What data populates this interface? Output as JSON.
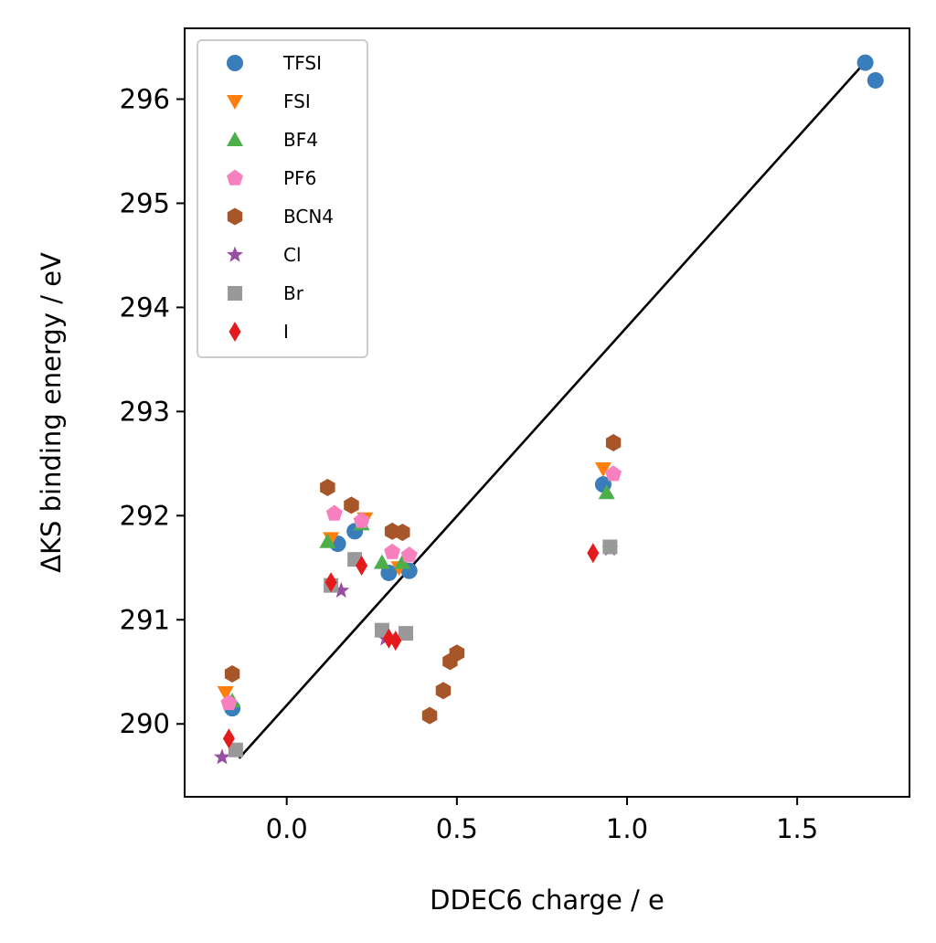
{
  "chart_data": {
    "type": "scatter",
    "xlabel": "DDEC6 charge / e",
    "ylabel": "ΔKS binding energy / eV",
    "xlim": [
      -0.3,
      1.83
    ],
    "ylim": [
      289.3,
      296.68
    ],
    "xticks": [
      0.0,
      0.5,
      1.0,
      1.5
    ],
    "xtick_labels": [
      "0.0",
      "0.5",
      "1.0",
      "1.5"
    ],
    "yticks": [
      290,
      291,
      292,
      293,
      294,
      295,
      296
    ],
    "ytick_labels": [
      "290",
      "291",
      "292",
      "293",
      "294",
      "295",
      "296"
    ],
    "grid": false,
    "legend_position": "upper-left",
    "series": [
      {
        "name": "TFSI",
        "marker": "circle",
        "color": "#3a7dbb",
        "x": [
          -0.16,
          0.15,
          0.2,
          0.3,
          0.36,
          0.93,
          1.7,
          1.73
        ],
        "y": [
          290.15,
          291.73,
          291.85,
          291.45,
          291.47,
          292.3,
          296.35,
          296.18
        ]
      },
      {
        "name": "FSI",
        "marker": "triangle-down",
        "color": "#ff7f0e",
        "x": [
          -0.18,
          0.13,
          0.23,
          0.33,
          0.93
        ],
        "y": [
          290.3,
          291.78,
          291.97,
          291.5,
          292.45
        ]
      },
      {
        "name": "BF4",
        "marker": "triangle-up",
        "color": "#4daf4a",
        "x": [
          -0.16,
          0.12,
          0.22,
          0.28,
          0.34,
          0.94
        ],
        "y": [
          290.22,
          291.75,
          291.92,
          291.55,
          291.55,
          292.22
        ]
      },
      {
        "name": "PF6",
        "marker": "pentagon",
        "color": "#f781bf",
        "x": [
          -0.17,
          0.14,
          0.22,
          0.31,
          0.36,
          0.96
        ],
        "y": [
          290.2,
          292.02,
          291.95,
          291.65,
          291.62,
          292.4
        ]
      },
      {
        "name": "BCN4",
        "marker": "hexagon",
        "color": "#a65628",
        "x": [
          -0.16,
          0.12,
          0.19,
          0.31,
          0.34,
          0.42,
          0.46,
          0.48,
          0.5,
          0.96
        ],
        "y": [
          290.48,
          292.27,
          292.1,
          291.85,
          291.84,
          290.08,
          290.32,
          290.6,
          290.68,
          292.7
        ]
      },
      {
        "name": "Cl",
        "marker": "star",
        "color": "#984ea3",
        "x": [
          -0.19,
          0.16,
          0.29,
          0.95
        ],
        "y": [
          289.68,
          291.28,
          290.82,
          291.68
        ]
      },
      {
        "name": "Br",
        "marker": "square",
        "color": "#999999",
        "x": [
          -0.15,
          0.13,
          0.2,
          0.28,
          0.35,
          0.95
        ],
        "y": [
          289.75,
          291.33,
          291.58,
          290.9,
          290.87,
          291.7
        ]
      },
      {
        "name": "I",
        "marker": "thin-diamond",
        "color": "#e41a1c",
        "x": [
          -0.17,
          0.13,
          0.22,
          0.3,
          0.32,
          0.9
        ],
        "y": [
          289.86,
          291.36,
          291.52,
          290.82,
          290.8,
          291.64
        ]
      }
    ],
    "fit_line": {
      "color": "#000000",
      "x": [
        -0.14,
        1.69
      ],
      "y": [
        289.67,
        296.32
      ]
    }
  }
}
